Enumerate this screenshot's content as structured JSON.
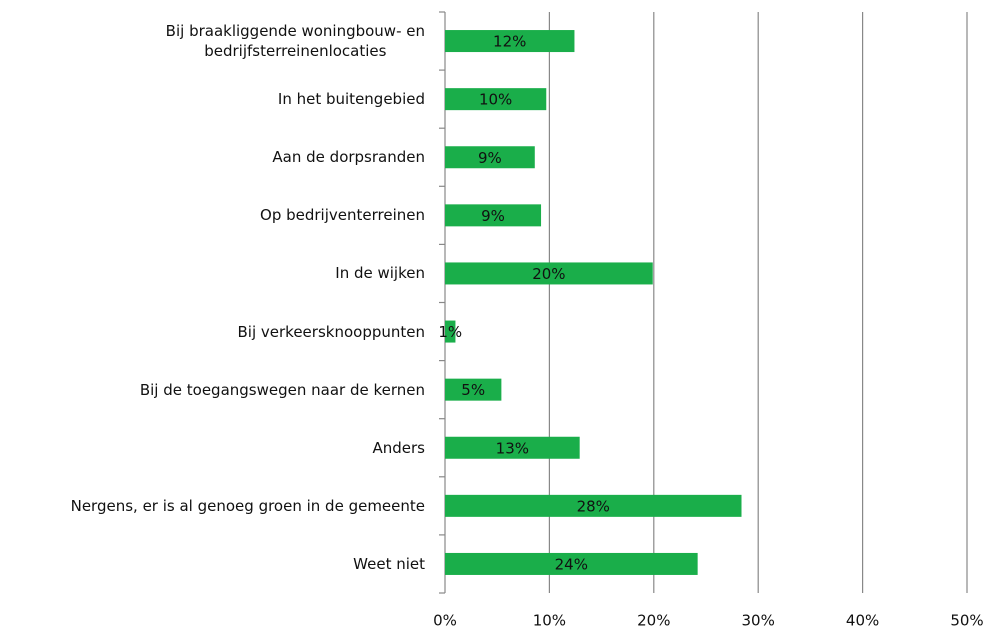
{
  "chart_data": {
    "type": "bar",
    "orientation": "horizontal",
    "categories": [
      "Bij braakliggende woningbouw- en\nbedrijfsterreinenlocaties",
      "In het buitengebied",
      "Aan de dorpsranden",
      "Op bedrijventerreinen",
      "In de wijken",
      "Bij verkeersknooppunten",
      "Bij de toegangswegen naar de kernen",
      "Anders",
      "Nergens, er is al genoeg groen in de gemeente",
      "Weet niet"
    ],
    "values": [
      12.4,
      9.7,
      8.6,
      9.2,
      19.9,
      1.0,
      5.4,
      12.9,
      28.4,
      24.2
    ],
    "value_labels": [
      "12%",
      "10%",
      "9%",
      "9%",
      "20%",
      "1%",
      "5%",
      "13%",
      "28%",
      "24%"
    ],
    "color": "#1aae4a",
    "xlim": [
      0,
      50
    ],
    "xticks": [
      {
        "value": 0,
        "label": "0%"
      },
      {
        "value": 10,
        "label": "10%"
      },
      {
        "value": 20,
        "label": "20%"
      },
      {
        "value": 30,
        "label": "30%"
      },
      {
        "value": 40,
        "label": "40%"
      },
      {
        "value": 50,
        "label": "50%"
      }
    ],
    "grid": true
  }
}
